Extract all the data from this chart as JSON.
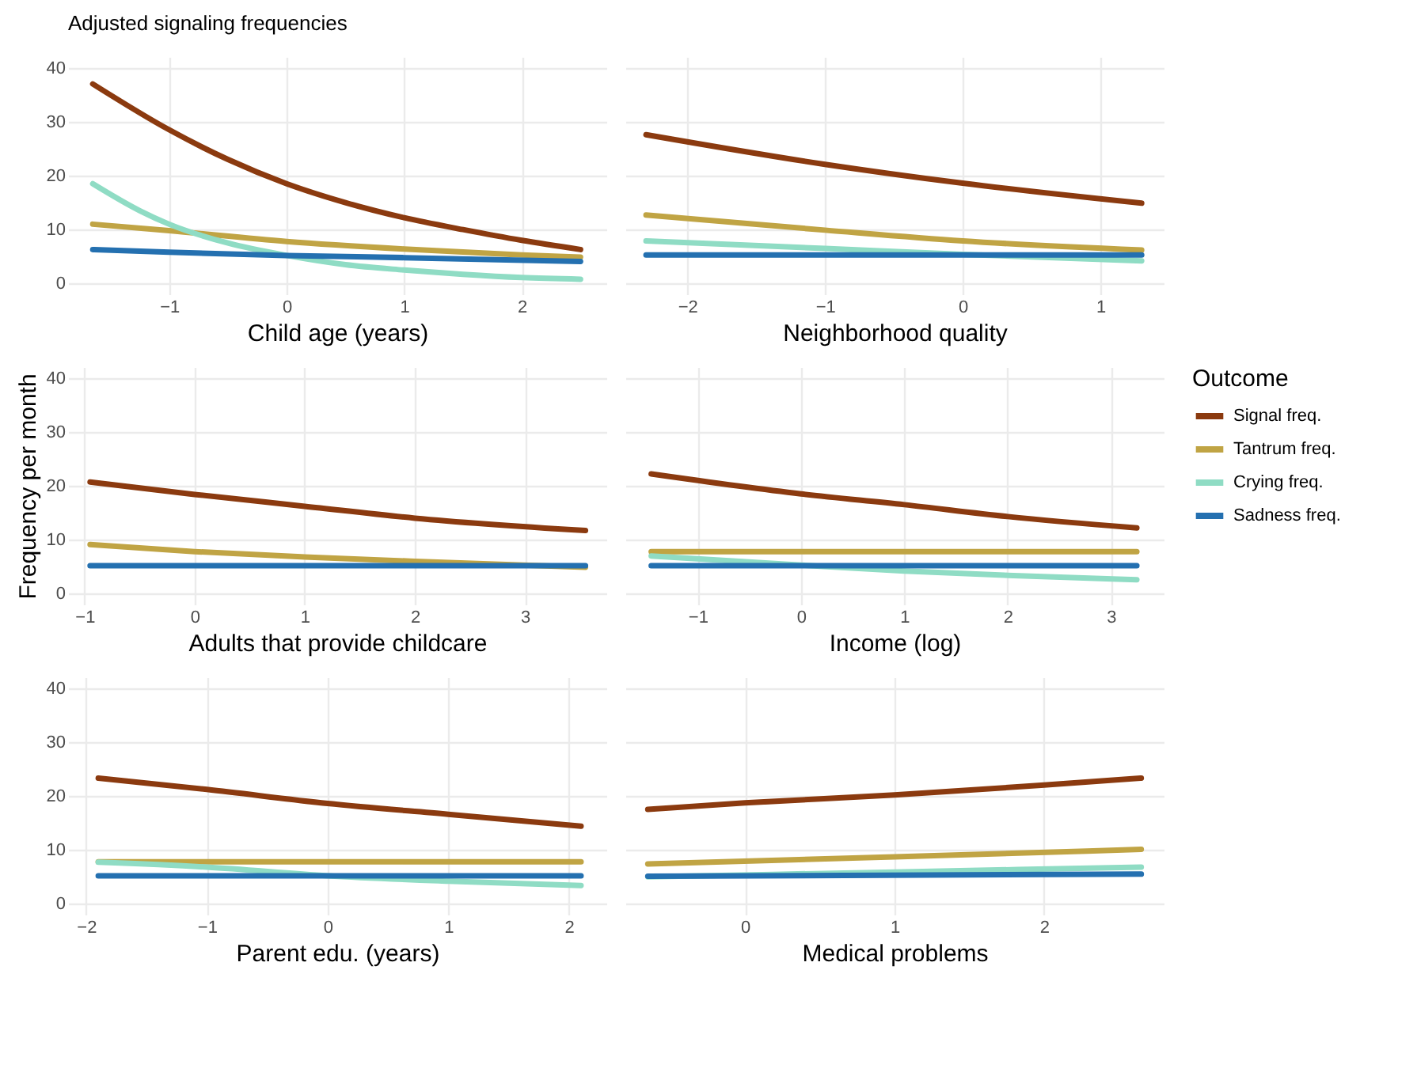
{
  "chart_data": [
    {
      "type": "line",
      "title": "Adjusted signaling frequencies",
      "xlabel": "Child age (years)",
      "xlim": [
        -1.86,
        2.72
      ],
      "xticks": [
        -1,
        0,
        1,
        2
      ],
      "ylim": [
        -2,
        42
      ],
      "yticks": [
        0,
        10,
        20,
        30,
        40
      ],
      "grid": true,
      "line_style": "solid",
      "series": [
        {
          "color": "#8b3a0f",
          "x": [
            -1.65,
            -1,
            -0.5,
            0,
            0.5,
            1,
            1.5,
            2,
            2.5
          ],
          "values": [
            37,
            28.5,
            23,
            18.5,
            15,
            12.2,
            10,
            8,
            6.3
          ]
        },
        {
          "color": "#c0a444",
          "x": [
            -1.65,
            -1,
            0,
            1,
            2,
            2.5
          ],
          "values": [
            11,
            9.8,
            7.8,
            6.4,
            5.3,
            4.9
          ]
        },
        {
          "color": "#8fdcc4",
          "x": [
            -1.65,
            -1.25,
            -1,
            -0.5,
            0,
            0.5,
            1,
            1.5,
            2,
            2.5
          ],
          "values": [
            18.5,
            13.5,
            11,
            7.5,
            5.2,
            3.5,
            2.5,
            1.7,
            1.1,
            0.8
          ]
        },
        {
          "color": "#2470b0",
          "x": [
            -1.65,
            -1,
            0,
            1,
            2.5
          ],
          "values": [
            6.3,
            5.8,
            5.2,
            4.8,
            4.1
          ]
        }
      ]
    },
    {
      "type": "line",
      "xlabel": "Neighborhood quality",
      "xlim": [
        -2.45,
        1.46
      ],
      "xticks": [
        -2,
        -1,
        0,
        1
      ],
      "ylim": [
        -2,
        42
      ],
      "yticks": [
        0,
        10,
        20,
        30,
        40
      ],
      "grid": true,
      "tick_labels": "x",
      "line_style": "solid",
      "series": [
        {
          "color": "#8b3a0f",
          "x": [
            -2.3,
            -1,
            0,
            1.3
          ],
          "values": [
            27.6,
            22.1,
            18.6,
            14.9
          ]
        },
        {
          "color": "#c0a444",
          "x": [
            -2.3,
            -1,
            0,
            1.3
          ],
          "values": [
            12.7,
            9.9,
            7.9,
            6.2
          ]
        },
        {
          "color": "#8fdcc4",
          "x": [
            -2.3,
            -1,
            0,
            1.3
          ],
          "values": [
            7.9,
            6.5,
            5.4,
            4.2
          ]
        },
        {
          "color": "#2470b0",
          "x": [
            -2.3,
            1.3
          ],
          "values": [
            5.3,
            5.3
          ]
        }
      ]
    },
    {
      "type": "line",
      "xlabel": "Adults that provide childcare",
      "ylabel": "Frequency per month",
      "xlim": [
        -1.15,
        3.74
      ],
      "xticks": [
        -1,
        0,
        1,
        2,
        3
      ],
      "ylim": [
        -2,
        42
      ],
      "yticks": [
        0,
        10,
        20,
        30,
        40
      ],
      "grid": true,
      "line_style": "solid",
      "series": [
        {
          "color": "#8b3a0f",
          "x": [
            -0.95,
            0,
            1,
            2,
            3.55
          ],
          "values": [
            20.7,
            18.4,
            16.2,
            14,
            11.7
          ]
        },
        {
          "color": "#c0a444",
          "x": [
            -0.95,
            0,
            1,
            2,
            3.55
          ],
          "values": [
            9.1,
            7.8,
            6.8,
            6,
            4.9
          ]
        },
        {
          "color": "#2470b0",
          "x": [
            -0.95,
            3.55
          ],
          "values": [
            5.2,
            5.2
          ]
        }
      ]
    },
    {
      "type": "line",
      "xlabel": "Income (log)",
      "legend_title": "Outcome",
      "legend": "right",
      "xlim": [
        -1.7,
        3.51
      ],
      "xticks": [
        -1,
        0,
        1,
        2,
        3
      ],
      "ylim": [
        -2,
        42
      ],
      "yticks": [
        0,
        10,
        20,
        30,
        40
      ],
      "grid": true,
      "tick_labels": "x",
      "line_style": "solid",
      "series": [
        {
          "name": "Signal freq.",
          "color": "#8b3a0f",
          "x": [
            -1.45,
            0,
            1,
            2,
            3.25
          ],
          "values": [
            22.2,
            18.5,
            16.5,
            14.3,
            12.2
          ]
        },
        {
          "name": "Tantrum freq.",
          "color": "#c0a444",
          "x": [
            -1.45,
            3.25
          ],
          "values": [
            7.8,
            7.8
          ]
        },
        {
          "name": "Crying freq.",
          "color": "#8fdcc4",
          "x": [
            -1.45,
            0,
            1,
            2,
            3.25
          ],
          "values": [
            7,
            5.3,
            4.2,
            3.4,
            2.6
          ]
        },
        {
          "name": "Sadness freq.",
          "color": "#2470b0",
          "x": [
            -1.45,
            3.25
          ],
          "values": [
            5.2,
            5.2
          ]
        }
      ]
    },
    {
      "type": "line",
      "xlabel": "Parent edu. (years)",
      "xlim": [
        -2.15,
        2.31
      ],
      "xticks": [
        -2,
        -1,
        0,
        1,
        2
      ],
      "ylim": [
        -2,
        42
      ],
      "yticks": [
        0,
        10,
        20,
        30,
        40
      ],
      "grid": true,
      "line_style": "solid",
      "series": [
        {
          "color": "#8b3a0f",
          "x": [
            -1.9,
            -1,
            0,
            1,
            2.1
          ],
          "values": [
            23.3,
            21.2,
            18.6,
            16.6,
            14.4
          ]
        },
        {
          "color": "#c0a444",
          "x": [
            -1.9,
            2.1
          ],
          "values": [
            7.8,
            7.8
          ]
        },
        {
          "color": "#8fdcc4",
          "x": [
            -1.9,
            -1,
            0,
            1,
            2.1
          ],
          "values": [
            7.7,
            6.8,
            5.2,
            4.2,
            3.4
          ]
        },
        {
          "color": "#2470b0",
          "x": [
            -1.9,
            2.1
          ],
          "values": [
            5.2,
            5.2
          ]
        }
      ]
    },
    {
      "type": "line",
      "xlabel": "Medical problems",
      "xlim": [
        -0.8,
        2.8
      ],
      "xticks": [
        0,
        1,
        2
      ],
      "ylim": [
        -2,
        42
      ],
      "yticks": [
        0,
        10,
        20,
        30,
        40
      ],
      "grid": true,
      "tick_labels": "x",
      "line_style": "solid",
      "series": [
        {
          "color": "#8b3a0f",
          "x": [
            -0.65,
            0,
            1,
            2,
            2.65
          ],
          "values": [
            17.5,
            18.7,
            20.2,
            22,
            23.3
          ]
        },
        {
          "color": "#c0a444",
          "x": [
            -0.65,
            1,
            2.65
          ],
          "values": [
            7.4,
            8.7,
            10.1
          ]
        },
        {
          "color": "#8fdcc4",
          "x": [
            -0.65,
            1,
            2.65
          ],
          "values": [
            5,
            5.9,
            6.8
          ]
        },
        {
          "color": "#2470b0",
          "x": [
            -0.65,
            2.65
          ],
          "values": [
            5.1,
            5.5
          ]
        }
      ]
    }
  ]
}
